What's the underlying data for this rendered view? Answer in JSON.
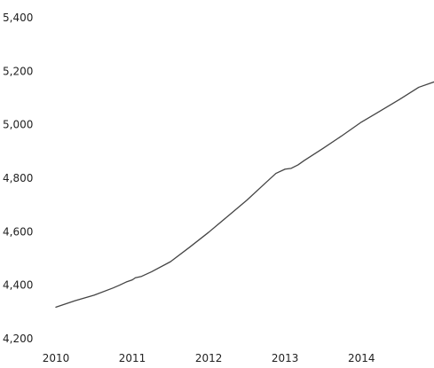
{
  "chart_data": {
    "type": "line",
    "title": "",
    "xlabel": "",
    "ylabel": "",
    "xlim": [
      2010.0,
      2014.95
    ],
    "ylim": [
      4200,
      5400
    ],
    "x_ticks": [
      2010,
      2011,
      2012,
      2013,
      2014
    ],
    "x_tick_labels": [
      "2010",
      "2011",
      "2012",
      "2013",
      "2014"
    ],
    "y_ticks": [
      4200,
      4400,
      4600,
      4800,
      5000,
      5200,
      5400
    ],
    "y_tick_labels": [
      "4,200",
      "4,400",
      "4,600",
      "4,800",
      "5,000",
      "5,200",
      "5,400"
    ],
    "grid": false,
    "legend": "none",
    "line_color": "#444444",
    "series": [
      {
        "name": "",
        "x": [
          2010.0,
          2010.25,
          2010.5,
          2010.75,
          2010.83,
          2010.92,
          2011.0,
          2011.04,
          2011.12,
          2011.25,
          2011.5,
          2011.75,
          2012.0,
          2012.25,
          2012.5,
          2012.75,
          2012.88,
          2013.0,
          2013.08,
          2013.17,
          2013.25,
          2013.5,
          2013.75,
          2014.0,
          2014.25,
          2014.5,
          2014.75,
          2014.95
        ],
        "y": [
          4318,
          4342,
          4363,
          4390,
          4400,
          4412,
          4420,
          4428,
          4433,
          4450,
          4488,
          4542,
          4598,
          4658,
          4718,
          4784,
          4818,
          4834,
          4837,
          4850,
          4866,
          4912,
          4960,
          5010,
          5052,
          5095,
          5140,
          5160
        ]
      }
    ]
  }
}
